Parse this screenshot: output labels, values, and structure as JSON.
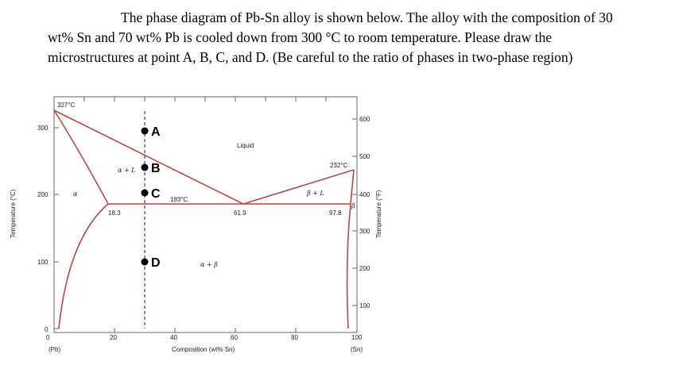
{
  "question": {
    "line1": "The phase diagram of Pb-Sn alloy is shown below. The alloy with the composition of 30",
    "line2": "wt% Sn and 70 wt% Pb is cooled down from 300 °C to room temperature. Please draw the",
    "line3": "microstructures at point A, B, C, and D. (Be careful to the ratio of phases in two-phase region)"
  },
  "diagram": {
    "left_axis": {
      "title": "Temperature (°C)",
      "ticks": [
        "0",
        "100",
        "200",
        "300"
      ]
    },
    "right_axis": {
      "title": "Temperature (°F)",
      "ticks": [
        "100",
        "200",
        "300",
        "400",
        "500",
        "600"
      ]
    },
    "x_axis": {
      "title": "Composition (wt% Sn)",
      "ticks": [
        "0",
        "20",
        "40",
        "60",
        "80",
        "100"
      ],
      "left_end": "(Pb)",
      "right_end": "(Sn)"
    },
    "labels": {
      "pb_melt": "327°C",
      "sn_melt": "232°C",
      "eutectic_temp": "183°C",
      "alpha_limit": "18.3",
      "eutectic_comp": "61.9",
      "beta_limit": "97.8",
      "liquid": "Liquid",
      "alpha": "α",
      "beta": "β",
      "alpha_plus_l": "α + L",
      "beta_plus_l": "β + L",
      "alpha_plus_beta": "α + β"
    },
    "points": [
      {
        "name": "A",
        "temp_c": 300
      },
      {
        "name": "B",
        "temp_c": 250
      },
      {
        "name": "C",
        "temp_c": 200
      },
      {
        "name": "D",
        "temp_c": 100
      }
    ],
    "alloy_composition_wt_sn": 30,
    "colors": {
      "phase_boundary": "#b5474a",
      "alloy_line": "#3f5fb0",
      "frame": "#555555"
    }
  }
}
